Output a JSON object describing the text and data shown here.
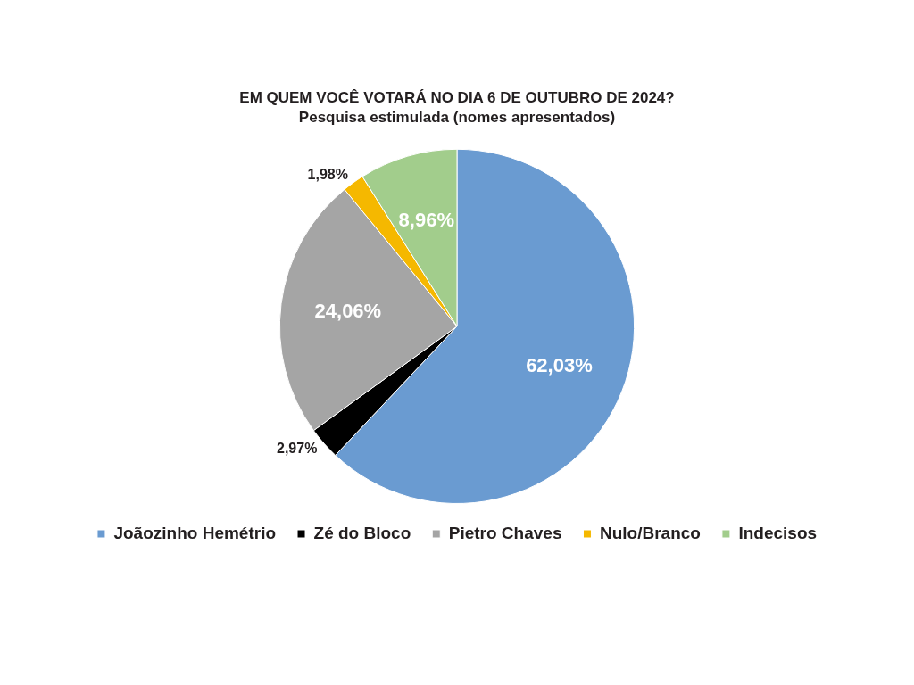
{
  "chart_data": {
    "type": "pie",
    "title": "EM QUEM VOCÊ VOTARÁ NO DIA 6 DE OUTUBRO DE 2024?",
    "subtitle": "Pesquisa estimulada (nomes apresentados)",
    "categories": [
      "Joãozinho Hemétrio",
      "Zé do Bloco",
      "Pietro Chaves",
      "Nulo/Branco",
      "Indecisos"
    ],
    "values": [
      62.03,
      2.97,
      24.06,
      1.98,
      8.96
    ],
    "colors": [
      "#6a9bd1",
      "#000000",
      "#a5a5a5",
      "#f5b800",
      "#a2cd8c"
    ],
    "value_labels": [
      "62,03%",
      "2,97%",
      "24,06%",
      "1,98%",
      "8,96%"
    ],
    "legend": "bottom"
  }
}
